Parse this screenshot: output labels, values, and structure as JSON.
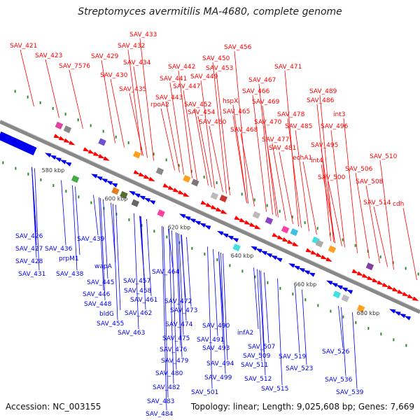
{
  "title": "Streptomyces avermitilis MA-4680, complete genome",
  "footer": {
    "accession": "Accession: NC_003155",
    "summary": "Topology: linear; Length: 9,025,608 bp; Genes: 7,669"
  },
  "colors": {
    "forward": "#ff0000",
    "reverse": "#0000ee",
    "backbone": "#888888",
    "tick_green": "#2a8a2a"
  },
  "ticks": [
    "580 kbp",
    "600 kbp",
    "620 kbp",
    "640 kbp",
    "660 kbp",
    "680 kbp"
  ],
  "labels_top": [
    "SAV_421",
    "SAV_423",
    "SAV_7576",
    "SAV_429",
    "SAV_430",
    "SAV_432",
    "SAV_433",
    "SAV_434",
    "SAV_435",
    "SAV_441",
    "SAV_442",
    "SAV_443",
    "SAV_447",
    "SAV_449",
    "SAV_450",
    "SAV_452",
    "SAV_453",
    "SAV_454",
    "SAV_456",
    "SAV_460",
    "SAV_465",
    "SAV_466",
    "SAV_467",
    "SAV_468",
    "SAV_469",
    "SAV_470",
    "SAV_471",
    "SAV_477",
    "SAV_478",
    "SAV_481",
    "SAV_485",
    "SAV_486",
    "SAV_489",
    "SAV_495",
    "SAV_496",
    "SAV_500",
    "SAV_506",
    "SAV_508",
    "SAV_510",
    "SAV_514",
    "rpoA2",
    "hspX",
    "echA1",
    "int3",
    "int4",
    "cdh"
  ],
  "labels_bottom": [
    "SAV_426",
    "SAV_427",
    "SAV_428",
    "SAV_431",
    "SAV_436",
    "prpM1",
    "SAV_438",
    "SAV_439",
    "wapA",
    "SAV_445",
    "SAV_446",
    "SAV_448",
    "bldG",
    "SAV_455",
    "SAV_457",
    "SAV_458",
    "SAV_461",
    "SAV_462",
    "SAV_463",
    "SAV_464",
    "SAV_472",
    "SAV_473",
    "SAV_474",
    "SAV_475",
    "SAV_476",
    "SAV_479",
    "SAV_480",
    "SAV_482",
    "SAV_483",
    "SAV_484",
    "SAV_490",
    "SAV_491",
    "SAV_493",
    "SAV_494",
    "SAV_499",
    "SAV_501",
    "infA2",
    "SAV_507",
    "SAV_509",
    "SAV_511",
    "SAV_512",
    "SAV_515",
    "SAV_519",
    "SAV_523",
    "SAV_526",
    "SAV_536",
    "SAV_539"
  ]
}
